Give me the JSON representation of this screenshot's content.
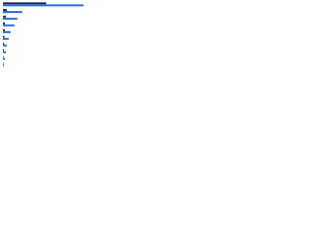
{
  "chart_data": {
    "type": "hbar",
    "categories": [
      null,
      null,
      null,
      null,
      null,
      null,
      null,
      null,
      null,
      null
    ],
    "series": [
      {
        "color": "#1b2b4d",
        "values": [
          45,
          4,
          3,
          2,
          2,
          1.5,
          1,
          1,
          0.5,
          0.5
        ]
      },
      {
        "color": "#2f6fdb",
        "values": [
          84,
          20,
          15,
          12,
          8,
          6,
          4,
          3,
          2,
          1
        ]
      }
    ],
    "xlim": [
      0,
      100
    ]
  }
}
